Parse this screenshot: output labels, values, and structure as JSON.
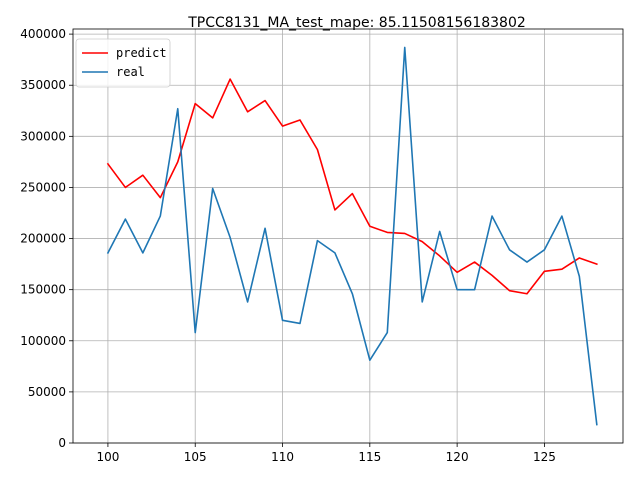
{
  "chart_data": {
    "type": "line",
    "title": "TPCC8131_MA_test_mape: 85.11508156183802",
    "xlabel": "",
    "ylabel": "",
    "xlim": [
      98,
      129.5
    ],
    "ylim": [
      0,
      405000
    ],
    "xticks": [
      100,
      105,
      110,
      115,
      120,
      125
    ],
    "yticks": [
      0,
      50000,
      100000,
      150000,
      200000,
      250000,
      300000,
      350000,
      400000
    ],
    "grid": true,
    "legend_position": "top-left",
    "x": [
      100,
      101,
      102,
      103,
      104,
      105,
      106,
      107,
      108,
      109,
      110,
      111,
      112,
      113,
      114,
      115,
      116,
      117,
      118,
      119,
      120,
      121,
      122,
      123,
      124,
      125,
      126,
      127,
      128
    ],
    "series": [
      {
        "name": "predict",
        "color": "#ff0000",
        "values": [
          273000,
          250000,
          262000,
          240000,
          275000,
          332000,
          318000,
          356000,
          324000,
          335000,
          310000,
          316000,
          287000,
          228000,
          244000,
          212000,
          206000,
          205000,
          197000,
          183000,
          167000,
          177000,
          164000,
          149000,
          146000,
          168000,
          170000,
          181000,
          175000
        ]
      },
      {
        "name": "real",
        "color": "#1f77b4",
        "values": [
          186000,
          219000,
          186000,
          222000,
          327000,
          108000,
          249000,
          201000,
          138000,
          210000,
          120000,
          117000,
          198000,
          186000,
          146000,
          81000,
          108000,
          387000,
          138000,
          207000,
          150000,
          150000,
          222000,
          189000,
          177000,
          189000,
          222000,
          163000,
          18000
        ]
      }
    ]
  }
}
